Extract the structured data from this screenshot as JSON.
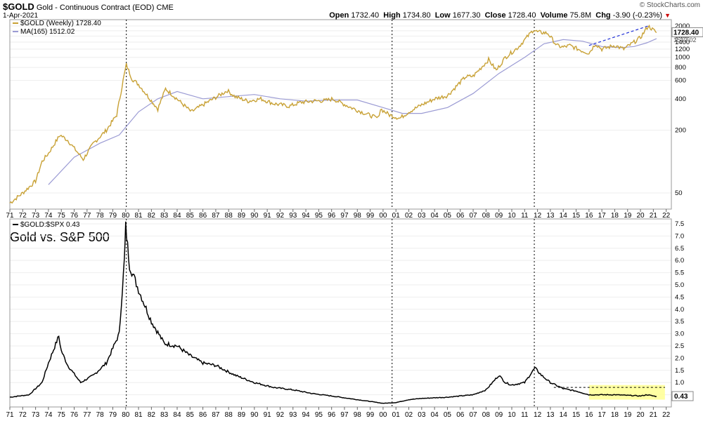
{
  "header": {
    "ticker": "$GOLD",
    "name": "Gold - Continuous Contract (EOD)",
    "exchange": "CME",
    "date": "1-Apr-2021",
    "open_label": "Open",
    "open": "1732.40",
    "high_label": "High",
    "high": "1734.80",
    "low_label": "Low",
    "low": "1677.30",
    "close_label": "Close",
    "close": "1728.40",
    "volume_label": "Volume",
    "volume": "75.8M",
    "chg_label": "Chg",
    "chg": "-3.90 (-0.23%)",
    "brand": "© StockCharts.com"
  },
  "colors": {
    "gold": "#c8a135",
    "ma": "#9b9bd4",
    "ratio": "#000000",
    "highlight": "#ffff99",
    "trend": "#1f2fd6"
  },
  "chart_data": [
    {
      "type": "line",
      "panel": "top",
      "scale": "log",
      "legend": [
        {
          "label": "$GOLD (Weekly) 1728.40",
          "color": "#c8a135"
        },
        {
          "label": "MA(165) 1512.02",
          "color": "#9b9bd4"
        }
      ],
      "ylim": [
        35,
        2300
      ],
      "yticks": [
        "2000",
        "1800",
        "1600",
        "1400",
        "1200",
        "1000",
        "800",
        "600",
        "400",
        "200",
        "50"
      ],
      "xticks": [
        "71",
        "72",
        "73",
        "74",
        "75",
        "76",
        "77",
        "78",
        "79",
        "80",
        "81",
        "82",
        "83",
        "84",
        "85",
        "86",
        "87",
        "88",
        "89",
        "90",
        "91",
        "92",
        "93",
        "94",
        "95",
        "96",
        "97",
        "98",
        "99",
        "00",
        "01",
        "02",
        "03",
        "04",
        "05",
        "06",
        "07",
        "08",
        "09",
        "10",
        "11",
        "12",
        "13",
        "14",
        "15",
        "16",
        "17",
        "18",
        "19",
        "20",
        "21",
        "22"
      ],
      "last_value_labels": [
        "1728.40",
        "1512.02"
      ],
      "series": [
        {
          "name": "$GOLD (Weekly)",
          "x": [
            1971.0,
            1972.0,
            1973.0,
            1973.5,
            1974.0,
            1974.9,
            1975.5,
            1976.7,
            1977.5,
            1978.5,
            1979.3,
            1979.8,
            1980.05,
            1980.5,
            1981.0,
            1982.5,
            1983.1,
            1984.5,
            1985.1,
            1986.0,
            1987.9,
            1988.5,
            1989.5,
            1990.5,
            1991.5,
            1992.7,
            1993.6,
            1994.5,
            1995.5,
            1996.1,
            1997.5,
            1998.6,
            1999.6,
            1999.8,
            2000.5,
            2001.3,
            2002.0,
            2003.0,
            2004.0,
            2005.0,
            2006.4,
            2007.0,
            2008.2,
            2008.8,
            2009.5,
            2010.5,
            2011.7,
            2012.0,
            2012.8,
            2013.5,
            2014.0,
            2014.5,
            2015.5,
            2016.0,
            2016.5,
            2017.0,
            2018.0,
            2018.7,
            2019.5,
            2020.0,
            2020.6,
            2021.25
          ],
          "y": [
            40,
            50,
            65,
            100,
            120,
            180,
            160,
            105,
            150,
            200,
            280,
            600,
            850,
            620,
            550,
            320,
            500,
            350,
            300,
            350,
            480,
            420,
            380,
            400,
            360,
            340,
            370,
            380,
            385,
            400,
            330,
            290,
            260,
            320,
            280,
            260,
            300,
            350,
            400,
            430,
            650,
            660,
            950,
            750,
            1000,
            1250,
            1850,
            1750,
            1700,
            1300,
            1250,
            1300,
            1150,
            1100,
            1350,
            1200,
            1300,
            1200,
            1400,
            1550,
            2000,
            1728.4
          ]
        },
        {
          "name": "MA(165)",
          "x": [
            1974.0,
            1976.0,
            1978.0,
            1979.5,
            1981.0,
            1982.5,
            1984.0,
            1986.0,
            1988.0,
            1990.0,
            1992.0,
            1994.0,
            1996.0,
            1998.0,
            2000.0,
            2001.5,
            2003.0,
            2005.0,
            2007.0,
            2009.0,
            2011.0,
            2012.5,
            2014.0,
            2015.5,
            2017.0,
            2018.5,
            2019.5,
            2020.5,
            2021.25
          ],
          "y": [
            60,
            110,
            150,
            180,
            300,
            400,
            470,
            400,
            420,
            440,
            400,
            380,
            390,
            390,
            330,
            290,
            290,
            330,
            450,
            700,
            1000,
            1350,
            1480,
            1430,
            1270,
            1240,
            1270,
            1380,
            1512.02
          ]
        }
      ]
    },
    {
      "type": "line",
      "panel": "bottom",
      "title": "Gold vs. S&P 500",
      "legend": [
        {
          "label": "$GOLD:$SPX 0.43",
          "color": "#000000"
        }
      ],
      "ylim": [
        0,
        7.7
      ],
      "yticks": [
        "7.5",
        "7.0",
        "6.5",
        "6.0",
        "5.5",
        "5.0",
        "4.5",
        "4.0",
        "3.5",
        "3.0",
        "2.5",
        "2.0",
        "1.5",
        "1.0",
        "0.5"
      ],
      "last_value_label": "0.43",
      "series": [
        {
          "name": "$GOLD:$SPX",
          "x": [
            1971.0,
            1972.5,
            1973.5,
            1974.0,
            1974.8,
            1975.0,
            1975.5,
            1976.5,
            1977.5,
            1978.5,
            1979.5,
            1979.9,
            1980.0,
            1980.3,
            1981.0,
            1982.0,
            1983.0,
            1984.0,
            1985.0,
            1986.0,
            1987.0,
            1988.5,
            1990.0,
            1991.5,
            1993.0,
            1994.5,
            1996.0,
            1998.0,
            2000.0,
            2001.0,
            2002.0,
            2003.0,
            2005.0,
            2007.0,
            2008.0,
            2009.0,
            2009.5,
            2010.0,
            2011.0,
            2011.8,
            2012.3,
            2013.0,
            2014.0,
            2015.0,
            2016.0,
            2018.0,
            2020.0,
            2020.5,
            2021.25
          ],
          "y": [
            0.4,
            0.5,
            1.0,
            1.8,
            2.9,
            2.3,
            1.7,
            1.0,
            1.3,
            1.8,
            3.0,
            6.0,
            7.4,
            5.8,
            4.8,
            3.5,
            2.6,
            2.5,
            2.1,
            1.8,
            1.7,
            1.3,
            1.0,
            0.8,
            0.7,
            0.55,
            0.45,
            0.3,
            0.15,
            0.18,
            0.3,
            0.35,
            0.4,
            0.5,
            0.7,
            1.3,
            1.0,
            0.9,
            1.0,
            1.6,
            1.3,
            1.0,
            0.75,
            0.65,
            0.5,
            0.5,
            0.45,
            0.5,
            0.43
          ]
        }
      ],
      "highlight": {
        "x": [
          2016.0,
          2021.9
        ],
        "y": [
          0.3,
          0.9
        ]
      },
      "ref_line_y": 0.8
    }
  ],
  "annotations": {
    "event_years": [
      1980.05,
      2000.7,
      2011.75
    ],
    "top_trend": {
      "x": [
        2016.0,
        2020.6
      ],
      "y": [
        1300,
        2000
      ]
    }
  }
}
